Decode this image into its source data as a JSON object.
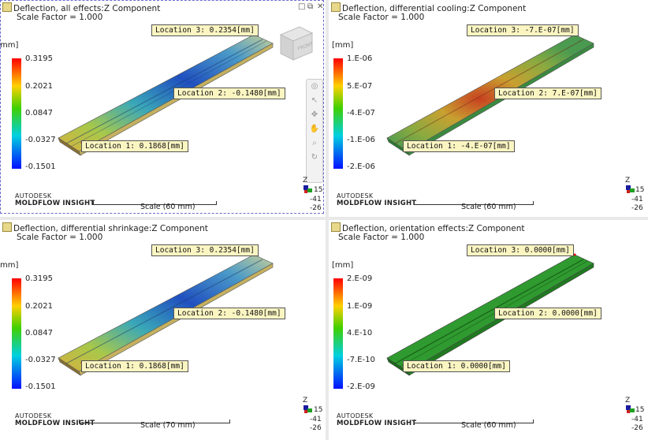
{
  "panes": [
    {
      "title": "Deflection, all effects:Z Component",
      "scale_factor": "Scale Factor = 1.000",
      "unit": "mm]",
      "ticks": [
        "0.3195",
        "0.2021",
        "0.0847",
        "-0.0327",
        "-0.1501"
      ],
      "colormap": "rainbow",
      "part_fill": "blue-mix",
      "labels": {
        "loc1": "Location 1: 0.1868[mm]",
        "loc2": "Location 2: -0.1480[mm]",
        "loc3": "Location 3: 0.2354[mm]"
      },
      "brand_top": "AUTODESK",
      "brand_bottom": "MOLDFLOW INSIGHT",
      "scale_text": "Scale (60 mm)",
      "axis_text": [
        "15",
        "-41",
        "-26"
      ],
      "axis_prefix": "Z"
    },
    {
      "title": "Deflection, differential cooling:Z Component",
      "scale_factor": "Scale Factor = 1.000",
      "unit": "[mm]",
      "ticks": [
        "1.E-06",
        "5.E-07",
        "-4.E-07",
        "-1.E-06",
        "-2.E-06"
      ],
      "colormap": "rainbow",
      "part_fill": "red-mix",
      "labels": {
        "loc1": "Location 1: -4.E-07[mm]",
        "loc2": "Location 2:  7.E-07[mm]",
        "loc3": "Location 3: -7.E-07[mm]"
      },
      "brand_top": "AUTODESK",
      "brand_bottom": "MOLDFLOW INSIGHT",
      "scale_text": "Scale (60 mm)",
      "axis_text": [
        "15",
        "-41",
        "-26"
      ],
      "axis_prefix": "Z"
    },
    {
      "title": "Deflection, differential shrinkage:Z Component",
      "scale_factor": "Scale Factor = 1.000",
      "unit": "mm]",
      "ticks": [
        "0.3195",
        "0.2021",
        "0.0847",
        "-0.0327",
        "-0.1501"
      ],
      "colormap": "rainbow",
      "part_fill": "blue-mix",
      "labels": {
        "loc1": "Location 1: 0.1868[mm]",
        "loc2": "Location 2: -0.1480[mm]",
        "loc3": "Location 3: 0.2354[mm]"
      },
      "brand_top": "AUTODESK",
      "brand_bottom": "MOLDFLOW INSIGHT",
      "scale_text": "Scale (70 mm)",
      "axis_text": [
        "15",
        "-41",
        "-26"
      ],
      "axis_prefix": "Z"
    },
    {
      "title": "Deflection, orientation effects:Z Component",
      "scale_factor": "Scale Factor = 1.000",
      "unit": "[mm]",
      "ticks": [
        "2.E-09",
        "1.E-09",
        "4.E-10",
        "-7.E-10",
        "-2.E-09"
      ],
      "colormap": "rainbow",
      "part_fill": "green",
      "labels": {
        "loc1": "Location 1:  0.0000[mm]",
        "loc2": "Location 2:  0.0000[mm]",
        "loc3": "Location 3:  0.0000[mm]"
      },
      "brand_top": "AUTODESK",
      "brand_bottom": "MOLDFLOW INSIGHT",
      "scale_text": "Scale (60 mm)",
      "axis_text": [
        "15",
        "-41",
        "-26"
      ],
      "axis_prefix": "Z"
    }
  ],
  "window_controls": [
    "minimize-icon",
    "restore-icon",
    "close-icon"
  ],
  "window_glyphs": [
    "□",
    "⧉",
    "✕"
  ],
  "nav_icons": [
    "orbit-icon",
    "select-icon",
    "pan-icon",
    "hand-icon",
    "zoom-icon",
    "rotate-icon"
  ],
  "nav_glyphs": [
    "◎",
    "↖",
    "✥",
    "✋",
    "⌕",
    "↻"
  ],
  "viewcube_text": "FRONT",
  "colors": {
    "label_bg": "#fbf5c2",
    "active_border": "#6a6acf"
  }
}
